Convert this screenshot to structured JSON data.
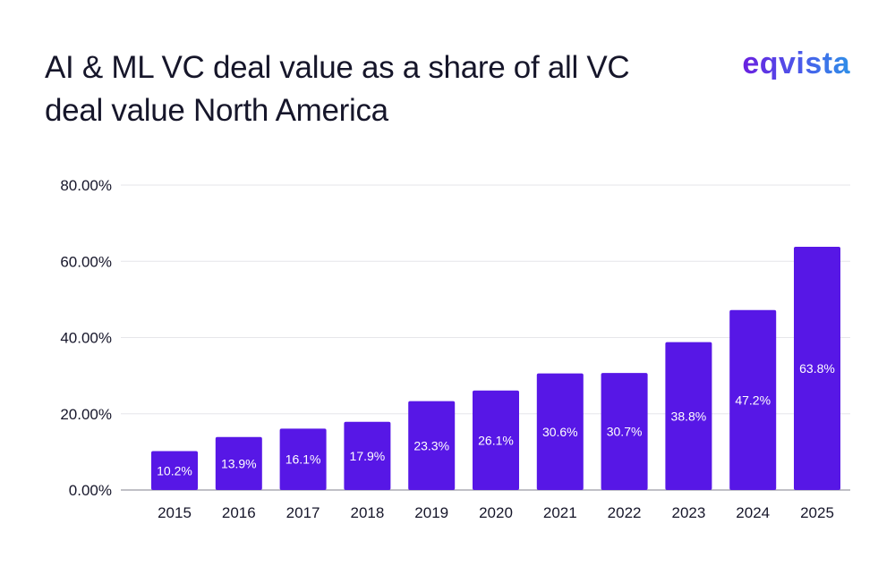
{
  "title": "AI & ML VC deal value as a share of all VC deal value North America",
  "brand": "eqvista",
  "colors": {
    "bar": "#5717e6",
    "grid": "#e6e6ea",
    "axis": "#9a9aa5",
    "text": "#16162a",
    "label": "#ffffff"
  },
  "chart_data": {
    "type": "bar",
    "title": "AI & ML VC deal value as a share of all VC deal value North America",
    "xlabel": "",
    "ylabel": "",
    "categories": [
      "2015",
      "2016",
      "2017",
      "2018",
      "2019",
      "2020",
      "2021",
      "2022",
      "2023",
      "2024",
      "2025"
    ],
    "values": [
      10.2,
      13.9,
      16.1,
      17.9,
      23.3,
      26.1,
      30.6,
      30.7,
      38.8,
      47.2,
      63.8
    ],
    "data_labels": [
      "10.2%",
      "13.9%",
      "16.1%",
      "17.9%",
      "23.3%",
      "26.1%",
      "30.6%",
      "30.7%",
      "38.8%",
      "47.2%",
      "63.8%"
    ],
    "y_ticks": [
      0,
      20,
      40,
      60,
      80
    ],
    "y_tick_labels": [
      "0.00%",
      "20.00%",
      "40.00%",
      "60.00%",
      "80.00%"
    ],
    "ylim": [
      0,
      80
    ],
    "grid": true,
    "legend": "none"
  }
}
